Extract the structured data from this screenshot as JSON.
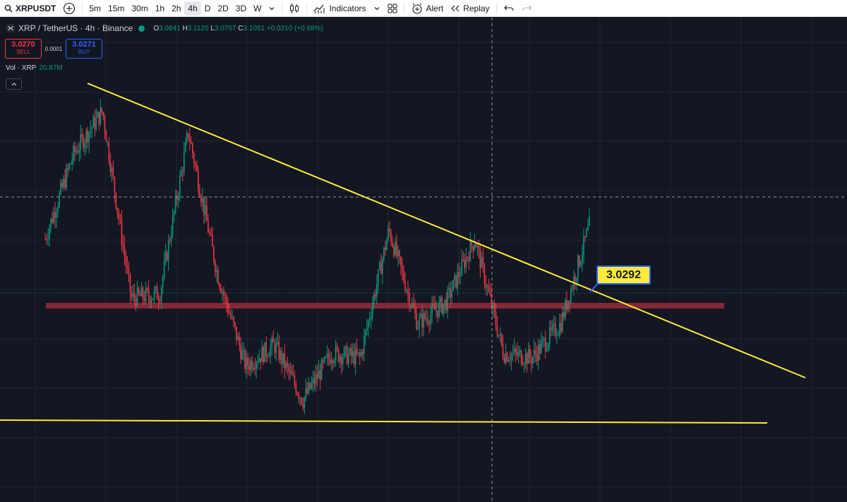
{
  "toolbar": {
    "symbol": "XRPUSDT",
    "timeframes": [
      {
        "label": "5m",
        "active": false
      },
      {
        "label": "15m",
        "active": false
      },
      {
        "label": "30m",
        "active": false
      },
      {
        "label": "1h",
        "active": false
      },
      {
        "label": "2h",
        "active": false
      },
      {
        "label": "4h",
        "active": true
      },
      {
        "label": "D",
        "active": false
      },
      {
        "label": "2D",
        "active": false
      },
      {
        "label": "3D",
        "active": false
      },
      {
        "label": "W",
        "active": false
      }
    ],
    "indicators_label": "Indicators",
    "alert_label": "Alert",
    "replay_label": "Replay"
  },
  "legend": {
    "title": "XRP / TetherUS · 4h · Binance",
    "o_label": "O",
    "o_value": "3.0841",
    "h_label": "H",
    "h_value": "3.1120",
    "l_label": "L",
    "l_value": "3.0707",
    "c_label": "C",
    "c_value": "3.1051",
    "change": "+0.0210 (+0.68%)"
  },
  "trade": {
    "sell_price": "3.0270",
    "sell_label": "SELL",
    "spread": "0.0001",
    "buy_price": "3.0271",
    "buy_label": "BUY"
  },
  "volume": {
    "label": "Vol · XRP",
    "value": "20.87M"
  },
  "annotation": {
    "label": "3.0292"
  },
  "colors": {
    "background": "#131722",
    "up": "#089981",
    "down": "#f23645",
    "trendline": "#ffeb3b",
    "zone": "#8d2a36",
    "callout_border": "#2962ff"
  },
  "icons": [
    "search-icon",
    "add-symbol-icon",
    "chevron-down-icon",
    "candles-icon",
    "indicators-icon",
    "layout-grid-icon",
    "alert-icon",
    "replay-icon",
    "undo-icon",
    "redo-icon"
  ],
  "chart_data": {
    "type": "candlestick",
    "price_trace": [
      3.0,
      3.2,
      3.3,
      2.86,
      2.87,
      3.25,
      2.92,
      2.7,
      2.75,
      2.62,
      2.73,
      2.72,
      3.02,
      2.8,
      2.85,
      3.0,
      2.73,
      2.72,
      2.8,
      3.0292
    ],
    "candle_count": 385,
    "support_zone": 2.86,
    "horizontal_support": 2.61,
    "descending_trendline": {
      "start": 3.47,
      "end": 2.67
    },
    "ylim": [
      2.38,
      3.52
    ]
  }
}
